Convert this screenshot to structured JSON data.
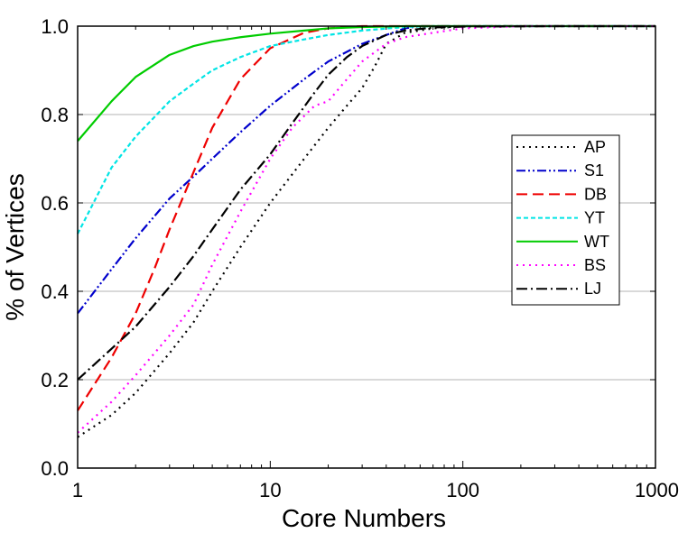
{
  "chart_data": {
    "type": "line",
    "title": "",
    "xlabel": "Core Numbers",
    "ylabel": "% of Vertices",
    "xscale": "log",
    "xlim": [
      1,
      1000
    ],
    "ylim": [
      0.0,
      1.0
    ],
    "x_ticks": [
      1,
      10,
      100,
      1000
    ],
    "x_tick_labels": [
      "1",
      "10",
      "100",
      "1000"
    ],
    "y_ticks": [
      0.0,
      0.2,
      0.4,
      0.6,
      0.8,
      1.0
    ],
    "y_tick_labels": [
      "0.0",
      "0.2",
      "0.4",
      "0.6",
      "0.8",
      "1.0"
    ],
    "grid": "horizontal",
    "legend_position": "right",
    "series": [
      {
        "name": "AP",
        "color": "#000000",
        "dash": "dot",
        "points": [
          [
            1,
            0.07
          ],
          [
            1.5,
            0.12
          ],
          [
            2,
            0.17
          ],
          [
            3,
            0.26
          ],
          [
            4,
            0.33
          ],
          [
            5,
            0.4
          ],
          [
            7,
            0.5
          ],
          [
            10,
            0.6
          ],
          [
            15,
            0.7
          ],
          [
            20,
            0.77
          ],
          [
            25,
            0.82
          ],
          [
            30,
            0.86
          ],
          [
            35,
            0.91
          ],
          [
            40,
            0.96
          ],
          [
            50,
            0.985
          ],
          [
            70,
            0.995
          ],
          [
            100,
            1.0
          ],
          [
            1000,
            1.0
          ]
        ]
      },
      {
        "name": "S1",
        "color": "#0000cc",
        "dash": "dashdotdot",
        "points": [
          [
            1,
            0.35
          ],
          [
            1.5,
            0.45
          ],
          [
            2,
            0.52
          ],
          [
            3,
            0.61
          ],
          [
            4,
            0.66
          ],
          [
            5,
            0.7
          ],
          [
            7,
            0.76
          ],
          [
            10,
            0.82
          ],
          [
            15,
            0.88
          ],
          [
            20,
            0.92
          ],
          [
            30,
            0.96
          ],
          [
            40,
            0.98
          ],
          [
            50,
            0.995
          ],
          [
            60,
            1.0
          ],
          [
            1000,
            1.0
          ]
        ]
      },
      {
        "name": "DB",
        "color": "#ee0000",
        "dash": "dash",
        "points": [
          [
            1,
            0.13
          ],
          [
            1.5,
            0.25
          ],
          [
            2,
            0.35
          ],
          [
            2.5,
            0.45
          ],
          [
            3,
            0.54
          ],
          [
            4,
            0.67
          ],
          [
            5,
            0.77
          ],
          [
            7,
            0.88
          ],
          [
            10,
            0.95
          ],
          [
            15,
            0.985
          ],
          [
            20,
            0.995
          ],
          [
            30,
            1.0
          ],
          [
            1000,
            1.0
          ]
        ]
      },
      {
        "name": "YT",
        "color": "#00e5e5",
        "dash": "shortdash",
        "points": [
          [
            1,
            0.53
          ],
          [
            1.5,
            0.68
          ],
          [
            2,
            0.75
          ],
          [
            3,
            0.83
          ],
          [
            4,
            0.87
          ],
          [
            5,
            0.9
          ],
          [
            7,
            0.93
          ],
          [
            10,
            0.955
          ],
          [
            15,
            0.97
          ],
          [
            20,
            0.98
          ],
          [
            30,
            0.99
          ],
          [
            50,
            0.998
          ],
          [
            70,
            1.0
          ],
          [
            1000,
            1.0
          ]
        ]
      },
      {
        "name": "WT",
        "color": "#00cc00",
        "dash": "solid",
        "points": [
          [
            1,
            0.74
          ],
          [
            1.5,
            0.83
          ],
          [
            2,
            0.885
          ],
          [
            3,
            0.935
          ],
          [
            4,
            0.955
          ],
          [
            5,
            0.965
          ],
          [
            7,
            0.975
          ],
          [
            10,
            0.983
          ],
          [
            15,
            0.99
          ],
          [
            20,
            0.995
          ],
          [
            30,
            0.998
          ],
          [
            50,
            1.0
          ],
          [
            1000,
            1.0
          ]
        ]
      },
      {
        "name": "BS",
        "color": "#ff00ff",
        "dash": "dot",
        "points": [
          [
            1,
            0.08
          ],
          [
            1.5,
            0.15
          ],
          [
            2,
            0.21
          ],
          [
            3,
            0.3
          ],
          [
            4,
            0.37
          ],
          [
            5,
            0.46
          ],
          [
            7,
            0.58
          ],
          [
            10,
            0.7
          ],
          [
            13,
            0.77
          ],
          [
            17,
            0.82
          ],
          [
            20,
            0.83
          ],
          [
            25,
            0.88
          ],
          [
            30,
            0.92
          ],
          [
            40,
            0.96
          ],
          [
            50,
            0.975
          ],
          [
            70,
            0.985
          ],
          [
            100,
            0.995
          ],
          [
            200,
            1.0
          ],
          [
            1000,
            1.0
          ]
        ]
      },
      {
        "name": "LJ",
        "color": "#000000",
        "dash": "dashdot",
        "points": [
          [
            1,
            0.2
          ],
          [
            1.5,
            0.27
          ],
          [
            2,
            0.32
          ],
          [
            3,
            0.41
          ],
          [
            4,
            0.48
          ],
          [
            5,
            0.54
          ],
          [
            7,
            0.63
          ],
          [
            10,
            0.71
          ],
          [
            13,
            0.78
          ],
          [
            17,
            0.85
          ],
          [
            20,
            0.89
          ],
          [
            25,
            0.93
          ],
          [
            30,
            0.955
          ],
          [
            40,
            0.98
          ],
          [
            50,
            0.99
          ],
          [
            70,
            0.997
          ],
          [
            100,
            0.999
          ],
          [
            300,
            1.0
          ],
          [
            1000,
            1.0
          ]
        ]
      }
    ]
  }
}
